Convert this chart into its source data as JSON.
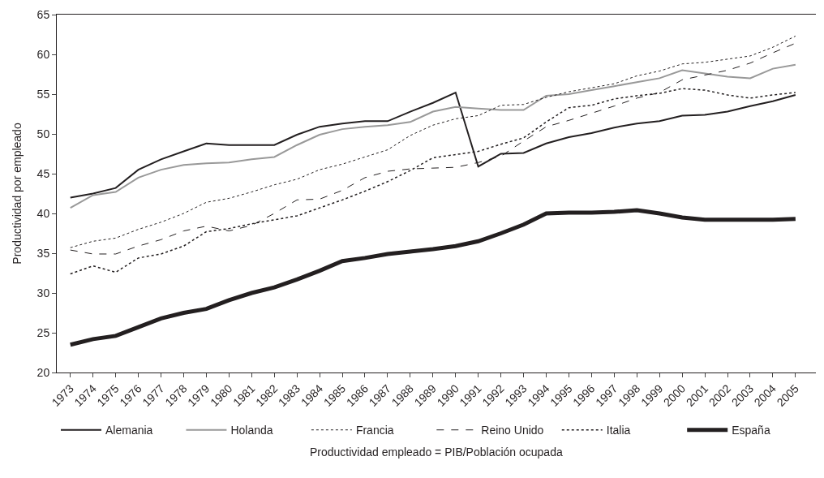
{
  "chart_data": {
    "type": "line",
    "ylabel": "Productividad por empleado",
    "annotations": [
      "Productividad empleado = PIB/Población ocupada"
    ],
    "categories": [
      "1973",
      "1974",
      "1975",
      "1976",
      "1977",
      "1978",
      "1979",
      "1980",
      "1981",
      "1982",
      "1983",
      "1984",
      "1985",
      "1986",
      "1987",
      "1988",
      "1989",
      "1990",
      "1991",
      "1992",
      "1993",
      "1994",
      "1995",
      "1996",
      "1997",
      "1998",
      "1999",
      "2000",
      "2001",
      "2002",
      "2003",
      "2004",
      "2005"
    ],
    "ylim": [
      20,
      65
    ],
    "yticks": [
      20,
      25,
      30,
      35,
      40,
      45,
      50,
      55,
      60,
      65
    ],
    "legend": "bottom",
    "marker": "none",
    "series": [
      {
        "name": "Alemania",
        "color": "#231f20",
        "line_style": "solid",
        "values": [
          42.0,
          42.5,
          43.2,
          45.5,
          46.8,
          47.8,
          48.8,
          48.6,
          48.6,
          48.6,
          49.9,
          50.9,
          51.3,
          51.6,
          51.6,
          52.8,
          53.9,
          55.2,
          45.9,
          47.5,
          47.6,
          48.8,
          49.6,
          50.1,
          50.8,
          51.3,
          51.6,
          52.3,
          52.4,
          52.8,
          53.5,
          54.1,
          54.9
        ]
      },
      {
        "name": "Holanda",
        "color": "#999999",
        "line_style": "solid",
        "values": [
          40.7,
          42.3,
          42.7,
          44.5,
          45.5,
          46.1,
          46.3,
          46.4,
          46.8,
          47.1,
          48.6,
          49.9,
          50.6,
          50.9,
          51.1,
          51.5,
          52.8,
          53.4,
          53.2,
          53.0,
          53.0,
          54.8,
          55.0,
          55.5,
          56.0,
          56.5,
          57.0,
          58.0,
          57.6,
          57.2,
          57.0,
          58.2,
          58.7
        ]
      },
      {
        "name": "Francia",
        "color": "#231f20",
        "line_style": "dotted",
        "values": [
          35.7,
          36.5,
          36.9,
          38.0,
          38.9,
          40.0,
          41.4,
          41.9,
          42.7,
          43.6,
          44.3,
          45.5,
          46.2,
          47.1,
          48.0,
          49.8,
          51.1,
          51.9,
          52.3,
          53.6,
          53.7,
          54.6,
          55.3,
          55.8,
          56.3,
          57.3,
          57.9,
          58.8,
          59.0,
          59.4,
          59.8,
          60.9,
          62.3
        ]
      },
      {
        "name": "Reino Unido",
        "color": "#231f20",
        "line_style": "dashed",
        "values": [
          35.4,
          34.9,
          34.9,
          35.9,
          36.7,
          37.8,
          38.4,
          37.8,
          38.5,
          40.0,
          41.7,
          41.8,
          42.9,
          44.5,
          45.3,
          45.6,
          45.7,
          45.8,
          46.4,
          47.2,
          49.1,
          50.9,
          51.7,
          52.6,
          53.5,
          54.5,
          55.2,
          56.8,
          57.4,
          58.0,
          58.9,
          60.2,
          61.4
        ]
      },
      {
        "name": "Italia",
        "color": "#231f20",
        "line_style": "dotted",
        "values": [
          32.4,
          33.4,
          32.6,
          34.4,
          34.9,
          35.9,
          37.7,
          38.1,
          38.7,
          39.2,
          39.7,
          40.7,
          41.7,
          42.8,
          44.0,
          45.4,
          47.0,
          47.4,
          47.8,
          48.7,
          49.5,
          51.5,
          53.3,
          53.6,
          54.4,
          54.8,
          55.1,
          55.7,
          55.5,
          54.9,
          54.5,
          54.9,
          55.2
        ]
      },
      {
        "name": "España",
        "color": "#231f20",
        "line_style": "solid",
        "values": [
          23.5,
          24.2,
          24.6,
          25.7,
          26.8,
          27.5,
          28.0,
          29.1,
          30.0,
          30.7,
          31.7,
          32.8,
          34.0,
          34.4,
          34.9,
          35.2,
          35.5,
          35.9,
          36.5,
          37.5,
          38.6,
          40.0,
          40.1,
          40.1,
          40.2,
          40.4,
          40.0,
          39.5,
          39.2,
          39.2,
          39.2,
          39.2,
          39.3
        ]
      }
    ]
  }
}
